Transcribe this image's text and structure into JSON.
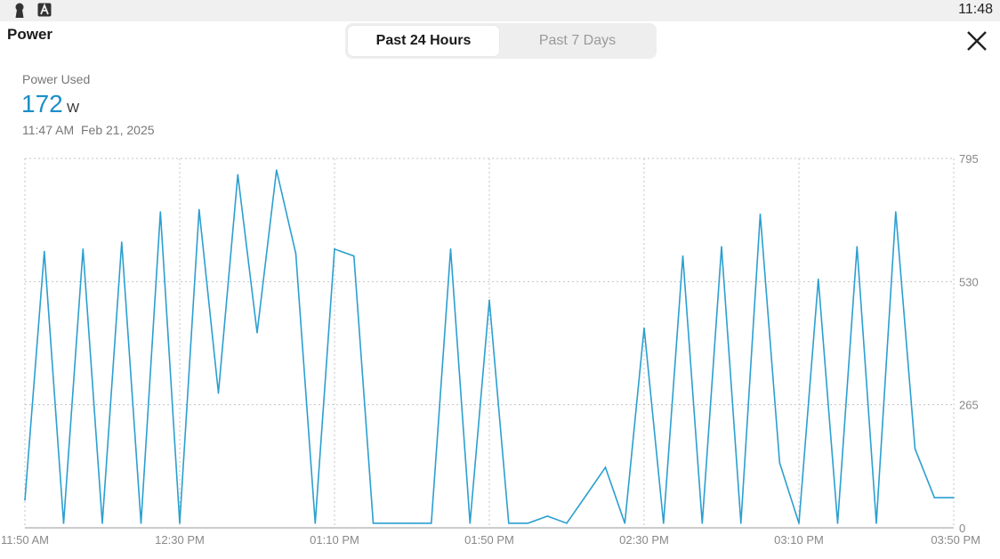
{
  "status_bar": {
    "time": "11:48"
  },
  "header": {
    "title": "Power",
    "close_icon": "close-icon"
  },
  "tabs": [
    {
      "label": "Past 24 Hours",
      "selected": true
    },
    {
      "label": "Past 7 Days",
      "selected": false
    }
  ],
  "metric": {
    "label": "Power Used",
    "value": "172",
    "unit": "W",
    "time": "11:47 AM",
    "date": "Feb 21, 2025"
  },
  "colors": {
    "accent": "#1a8fc9",
    "line": "#2b9fd0"
  },
  "chart_data": {
    "type": "line",
    "y_ticks": [
      "0",
      "265",
      "530",
      "795"
    ],
    "ylim": [
      0,
      795
    ],
    "x_ticks": [
      "11:50 AM",
      "12:30 PM",
      "01:10 PM",
      "01:50 PM",
      "02:30 PM",
      "03:10 PM",
      "03:50 PM"
    ],
    "x_tick_minutes": [
      0,
      40,
      80,
      120,
      160,
      200,
      240
    ],
    "grid": true,
    "series": [
      {
        "x_minutes": [
          0,
          5,
          10,
          15,
          20,
          25,
          30,
          35,
          40,
          45,
          50,
          55,
          60,
          65,
          70,
          75,
          80,
          85,
          90,
          95,
          100,
          105,
          110,
          115,
          120,
          125,
          130,
          135,
          140,
          145,
          150,
          155,
          160,
          165,
          170,
          175,
          180,
          185,
          190,
          195,
          200,
          205,
          210,
          215,
          220,
          225,
          230,
          235,
          240
        ],
        "values": [
          60,
          595,
          10,
          600,
          10,
          615,
          10,
          680,
          10,
          685,
          290,
          760,
          420,
          770,
          590,
          10,
          600,
          585,
          10,
          10,
          10,
          10,
          600,
          10,
          490,
          10,
          10,
          25,
          10,
          70,
          130,
          10,
          430,
          10,
          585,
          10,
          605,
          10,
          675,
          140,
          10,
          535,
          10,
          605,
          10,
          680,
          170,
          65,
          65
        ]
      }
    ]
  }
}
